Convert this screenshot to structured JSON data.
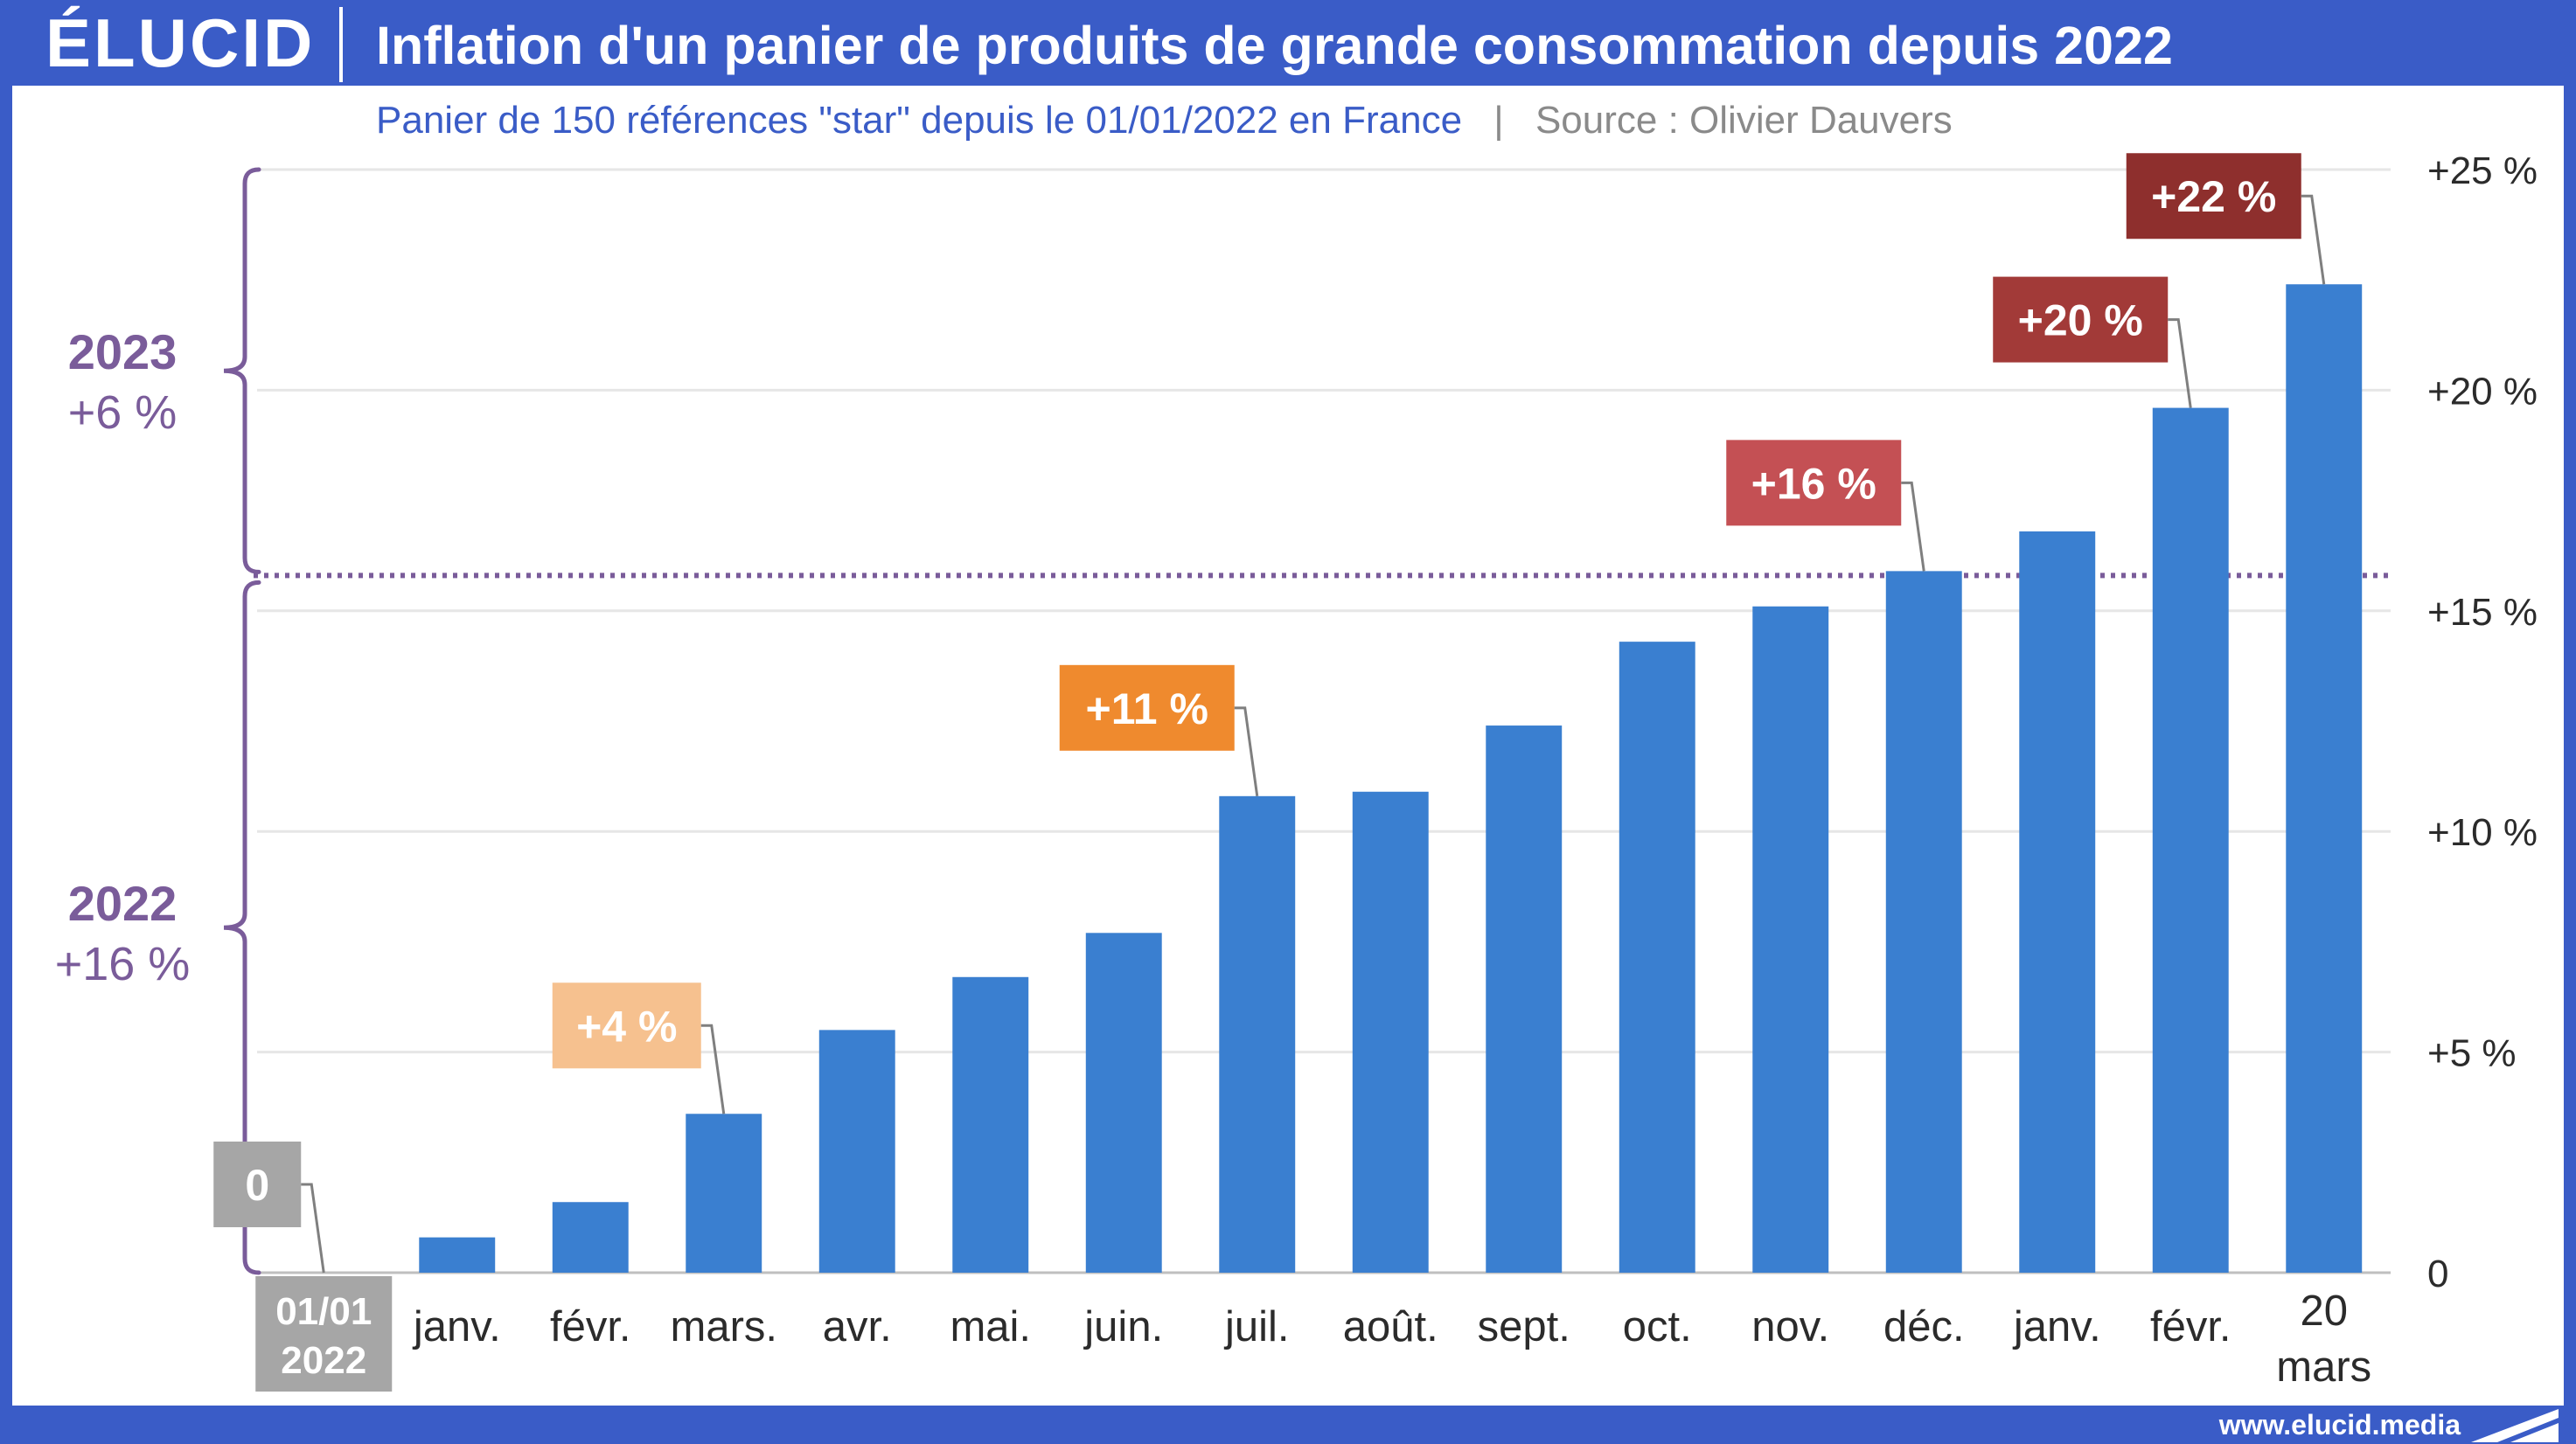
{
  "header": {
    "logo": "ÉLUCID",
    "title": "Inflation d'un panier de produits de grande consommation depuis 2022"
  },
  "subtitle": {
    "text": "Panier de 150 références \"star\" depuis le 01/01/2022 en France",
    "separator": "|",
    "source": "Source : Olivier Dauvers"
  },
  "footer": {
    "url": "www.elucid.media"
  },
  "colors": {
    "brand": "#3a5cc7",
    "bar": "#3a7fd0",
    "year_brace": "#7a5c9a",
    "grid": "#e6e6e6",
    "axis_text": "#2b2b2b"
  },
  "year_annotations": [
    {
      "year": "2023",
      "change": "+6 %"
    },
    {
      "year": "2022",
      "change": "+16 %"
    }
  ],
  "chart_data": {
    "type": "bar",
    "categories": [
      "01/01\n2022",
      "janv.",
      "févr.",
      "mars.",
      "avr.",
      "mai.",
      "juin.",
      "juil.",
      "août.",
      "sept.",
      "oct.",
      "nov.",
      "déc.",
      "janv.",
      "févr.",
      "20\nmars"
    ],
    "series": [
      {
        "values": [
          0,
          0.8,
          1.6,
          3.6,
          5.5,
          6.7,
          7.7,
          10.8,
          10.9,
          12.4,
          14.3,
          15.1,
          15.9,
          16.8,
          19.6,
          22.4
        ]
      }
    ],
    "ylim": [
      0,
      25
    ],
    "yticks": [
      0,
      5,
      10,
      15,
      20,
      25
    ],
    "ytick_labels": [
      "0",
      "+5 %",
      "+10 %",
      "+15 %",
      "+20 %",
      "+25 %"
    ],
    "y_axis_side": "right",
    "grid": true,
    "reference_line": {
      "value": 15.8,
      "style": "dotted"
    },
    "callouts": [
      {
        "index": 0,
        "label": "0",
        "color": "#a6a6a6"
      },
      {
        "index": 3,
        "label": "+4 %",
        "color": "#f6c18f"
      },
      {
        "index": 7,
        "label": "+11 %",
        "color": "#ef8a2e"
      },
      {
        "index": 12,
        "label": "+16 %",
        "color": "#c45054"
      },
      {
        "index": 14,
        "label": "+20 %",
        "color": "#a23a38"
      },
      {
        "index": 15,
        "label": "+22 %",
        "color": "#8e2f2d"
      }
    ]
  }
}
